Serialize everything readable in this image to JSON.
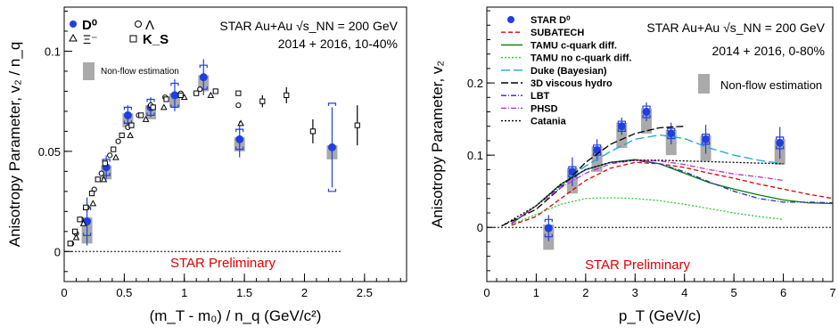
{
  "chart_data": [
    {
      "type": "scatter",
      "ylabel": "Anisotropy Parameter, v₂ / n_q",
      "xlabel": "(m_T - m₀) / n_q (GeV/c²)",
      "xlim": [
        0,
        2.85
      ],
      "ylim": [
        -0.015,
        0.122
      ],
      "xticks": [
        0,
        0.5,
        1,
        1.5,
        2,
        2.5
      ],
      "yticks": [
        0,
        0.05,
        0.1
      ],
      "grid": false,
      "legend_position": "top-left",
      "annotations": {
        "system": "STAR Au+Au √s_NN = 200 GeV",
        "run": "2014 + 2016, 10-40%",
        "preliminary": "STAR Preliminary",
        "nonflow_label": "Non-flow estimation"
      },
      "legend": {
        "d0": "D⁰",
        "lambda": "Λ",
        "xi": "Ξ⁻",
        "ks": "K_S"
      },
      "series": [
        {
          "name": "D⁰",
          "color": "#1f3fe0",
          "marker": "filled-circle",
          "x": [
            0.19,
            0.35,
            0.53,
            0.72,
            0.92,
            1.16,
            1.46,
            2.23
          ],
          "y": [
            0.015,
            0.042,
            0.068,
            0.072,
            0.078,
            0.087,
            0.056,
            0.052
          ],
          "yerr": [
            0.012,
            0.006,
            0.005,
            0.005,
            0.008,
            0.009,
            0.009,
            0.02
          ],
          "syst": [
            0.007,
            0.004,
            0.004,
            0.004,
            0.006,
            0.006,
            0.005,
            0.022
          ],
          "nonflow_low": [
            0.011,
            0.006,
            0.006,
            0.006,
            0.006,
            0.007,
            0.006,
            0.006
          ],
          "nonflow_high": [
            0.002,
            0.001,
            0.001,
            0.001,
            0.001,
            0.001,
            0.001,
            0.001
          ]
        },
        {
          "name": "Λ",
          "color": "#000000",
          "marker": "open-circle",
          "x": [
            0.06,
            0.1,
            0.14,
            0.19,
            0.25,
            0.31,
            0.38,
            0.45,
            0.53,
            0.62,
            0.72,
            0.84,
            0.97,
            1.13,
            1.45
          ],
          "y": [
            0.004,
            0.009,
            0.016,
            0.022,
            0.031,
            0.039,
            0.048,
            0.055,
            0.062,
            0.068,
            0.073,
            0.077,
            0.079,
            0.081,
            0.073
          ]
        },
        {
          "name": "Ξ⁻",
          "color": "#000000",
          "marker": "open-triangle",
          "x": [
            0.1,
            0.16,
            0.24,
            0.33,
            0.43,
            0.55,
            0.68,
            0.83,
            1.0,
            1.22,
            1.47
          ],
          "y": [
            0.007,
            0.014,
            0.024,
            0.036,
            0.047,
            0.058,
            0.066,
            0.072,
            0.077,
            0.078,
            0.064
          ]
        },
        {
          "name": "K_S",
          "color": "#000000",
          "marker": "open-square",
          "x": [
            0.05,
            0.09,
            0.13,
            0.18,
            0.23,
            0.28,
            0.34,
            0.41,
            0.48,
            0.56,
            0.64,
            0.74,
            0.85,
            0.97,
            1.1,
            1.26,
            1.45,
            1.65,
            1.85,
            2.07,
            2.44
          ],
          "y": [
            0.004,
            0.01,
            0.016,
            0.022,
            0.029,
            0.036,
            0.044,
            0.051,
            0.058,
            0.063,
            0.068,
            0.072,
            0.076,
            0.078,
            0.079,
            0.08,
            0.079,
            0.075,
            0.078,
            0.06,
            0.063
          ],
          "yerr": [
            0,
            0,
            0,
            0,
            0,
            0,
            0,
            0,
            0,
            0,
            0,
            0,
            0,
            0,
            0,
            0,
            0,
            0.003,
            0.004,
            0.006,
            0.01
          ]
        }
      ]
    },
    {
      "type": "line",
      "ylabel": "Anisotropy Parameter, v₂",
      "xlabel": "p_T (GeV/c)",
      "xlim": [
        0,
        7
      ],
      "ylim": [
        -0.075,
        0.305
      ],
      "xticks": [
        0,
        1,
        2,
        3,
        4,
        5,
        6,
        7
      ],
      "yticks": [
        0,
        0.1,
        0.2
      ],
      "grid": false,
      "legend_position": "top-left",
      "annotations": {
        "system": "STAR Au+Au √s_NN = 200 GeV",
        "run": "2014 + 2016, 0-80%",
        "preliminary": "STAR Preliminary",
        "nonflow_label": "Non-flow estimation"
      },
      "series": [
        {
          "name": "STAR D⁰",
          "color": "#1f3fe0",
          "marker": "filled-circle",
          "x": [
            1.25,
            1.73,
            2.23,
            2.73,
            3.23,
            3.73,
            4.43,
            5.93
          ],
          "y": [
            -0.001,
            0.077,
            0.107,
            0.14,
            0.16,
            0.13,
            0.122,
            0.117
          ],
          "yerr": [
            0.018,
            0.02,
            0.015,
            0.012,
            0.013,
            0.015,
            0.02,
            0.022
          ],
          "syst": [
            0.012,
            0.007,
            0.007,
            0.007,
            0.008,
            0.007,
            0.007,
            0.008
          ],
          "nonflow_low": [
            0.03,
            0.03,
            0.03,
            0.03,
            0.03,
            0.03,
            0.03,
            0.03
          ],
          "nonflow_high": [
            0.005,
            0.005,
            0.005,
            0.005,
            0.005,
            0.005,
            0.005,
            0.005
          ]
        },
        {
          "name": "SUBATECH",
          "color": "#e00000",
          "dash": "5,3",
          "x": [
            0.5,
            1,
            1.5,
            2,
            2.5,
            3,
            3.5,
            4,
            4.5,
            5,
            5.5,
            6,
            6.5,
            7
          ],
          "y": [
            0.003,
            0.015,
            0.04,
            0.065,
            0.082,
            0.09,
            0.088,
            0.083,
            0.075,
            0.068,
            0.06,
            0.053,
            0.046,
            0.04
          ]
        },
        {
          "name": "TAMU c-quark diff.",
          "color": "#008000",
          "dash": "",
          "x": [
            0.5,
            1,
            1.5,
            2,
            2.5,
            3,
            3.5,
            4,
            4.5,
            5,
            5.5,
            6,
            6.5,
            7
          ],
          "y": [
            0.005,
            0.03,
            0.06,
            0.08,
            0.09,
            0.094,
            0.088,
            0.075,
            0.062,
            0.053,
            0.045,
            0.038,
            0.034,
            0.033
          ]
        },
        {
          "name": "TAMU no c-quark diff.",
          "color": "#2ecc2e",
          "dash": "2,2",
          "x": [
            0.5,
            1,
            1.5,
            2,
            2.5,
            3,
            3.5,
            4,
            4.5,
            5,
            5.5,
            6
          ],
          "y": [
            0.004,
            0.018,
            0.032,
            0.04,
            0.041,
            0.04,
            0.037,
            0.032,
            0.026,
            0.02,
            0.015,
            0.011
          ]
        },
        {
          "name": "Duke (Bayesian)",
          "color": "#1aa3d9",
          "dash": "10,4",
          "x": [
            1.7,
            2,
            2.5,
            3,
            3.5,
            4,
            4.5,
            5,
            5.5,
            6
          ],
          "y": [
            0.07,
            0.085,
            0.105,
            0.122,
            0.128,
            0.123,
            0.11,
            0.1,
            0.093,
            0.088
          ]
        },
        {
          "name": "3D viscous hydro",
          "color": "#000000",
          "dash": "8,3",
          "x": [
            0.3,
            1,
            1.5,
            2,
            2.5,
            3,
            3.5,
            4
          ],
          "y": [
            0.002,
            0.025,
            0.055,
            0.09,
            0.115,
            0.13,
            0.138,
            0.14
          ]
        },
        {
          "name": "LBT",
          "color": "#2c2cb8",
          "dash": "6,2,1,2",
          "x": [
            0.5,
            1,
            1.5,
            2,
            2.5,
            3,
            3.5,
            4,
            4.5,
            5,
            5.5,
            6,
            6.5,
            7
          ],
          "y": [
            0.005,
            0.03,
            0.058,
            0.08,
            0.09,
            0.093,
            0.088,
            0.077,
            0.063,
            0.05,
            0.04,
            0.035,
            0.035,
            0.034
          ]
        },
        {
          "name": "PHSD",
          "color": "#c030c0",
          "dash": "6,2,1,2",
          "x": [
            0.5,
            1,
            1.5,
            2,
            2.5,
            3,
            3.5,
            4,
            4.5,
            5,
            5.5,
            6
          ],
          "y": [
            0.006,
            0.03,
            0.055,
            0.075,
            0.088,
            0.093,
            0.092,
            0.087,
            0.08,
            0.074,
            0.07,
            0.065
          ]
        },
        {
          "name": "Catania",
          "color": "#000000",
          "dash": "2,2",
          "x": [
            0.3,
            1,
            1.5,
            2,
            2.5,
            3,
            3.5,
            4,
            4.5,
            5,
            5.5,
            6
          ],
          "y": [
            0.002,
            0.03,
            0.06,
            0.08,
            0.09,
            0.093,
            0.093,
            0.092,
            0.091,
            0.09,
            0.089,
            0.088
          ]
        }
      ]
    }
  ]
}
